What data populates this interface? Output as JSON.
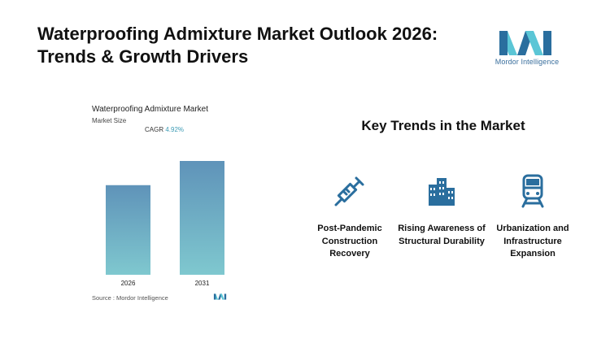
{
  "page": {
    "title_line1": "Waterproofing Admixture Market Outlook 2026:",
    "title_line2": "Trends & Growth Drivers"
  },
  "brand": {
    "name": "Mordor Intelligence",
    "colors": {
      "dark": "#2a6e9e",
      "light": "#5bc6d6"
    }
  },
  "chart_data": {
    "type": "bar",
    "title": "Waterproofing Admixture Market",
    "subtitle": "Market Size",
    "cagr_label": "CAGR",
    "cagr_value": "4.92%",
    "categories": [
      "2026",
      "2031"
    ],
    "values": [
      1.0,
      1.27
    ],
    "source": "Source :  Mordor Intelligence",
    "colors": {
      "bar_top": "#5f93b9",
      "bar_bottom": "#7fc8cf"
    }
  },
  "trends": {
    "heading": "Key Trends in the Market",
    "items": [
      {
        "label": "Post-Pandemic Construction Recovery",
        "icon": "syringe-icon"
      },
      {
        "label": "Rising Awareness of Structural Durability",
        "icon": "buildings-icon"
      },
      {
        "label": "Urbanization and Infrastructure Expansion",
        "icon": "train-icon"
      }
    ],
    "icon_color": "#2a6e9e"
  }
}
